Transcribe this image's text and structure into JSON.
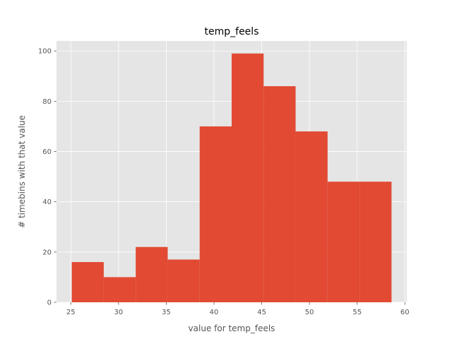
{
  "chart_data": {
    "type": "histogram",
    "title": "temp_feels",
    "xlabel": "value for temp_feels",
    "ylabel": "# timebins with that value",
    "bins": [
      {
        "x0": 25.1,
        "x1": 28.45,
        "count": 16
      },
      {
        "x0": 28.45,
        "x1": 31.8,
        "count": 10
      },
      {
        "x0": 31.8,
        "x1": 35.15,
        "count": 22
      },
      {
        "x0": 35.15,
        "x1": 38.5,
        "count": 17
      },
      {
        "x0": 38.5,
        "x1": 41.85,
        "count": 70
      },
      {
        "x0": 41.85,
        "x1": 45.2,
        "count": 99
      },
      {
        "x0": 45.2,
        "x1": 48.55,
        "count": 86
      },
      {
        "x0": 48.55,
        "x1": 51.9,
        "count": 68
      },
      {
        "x0": 51.9,
        "x1": 55.25,
        "count": 48
      },
      {
        "x0": 55.25,
        "x1": 58.6,
        "count": 48
      }
    ],
    "xlim": [
      23.5,
      60.2
    ],
    "ylim": [
      0,
      104
    ],
    "xticks": [
      25,
      30,
      35,
      40,
      45,
      50,
      55,
      60
    ],
    "yticks": [
      0,
      20,
      40,
      60,
      80,
      100
    ],
    "grid": true,
    "colors": {
      "bar": "#e24a33",
      "background": "#e5e5e5",
      "grid": "#ffffff",
      "text": "#555555"
    }
  }
}
